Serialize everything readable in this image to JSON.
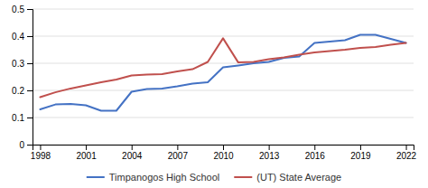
{
  "chart_data": {
    "type": "line",
    "x": [
      1998,
      1999,
      2000,
      2001,
      2002,
      2003,
      2004,
      2005,
      2006,
      2007,
      2008,
      2009,
      2010,
      2011,
      2012,
      2013,
      2014,
      2015,
      2016,
      2017,
      2018,
      2019,
      2020,
      2021,
      2022
    ],
    "series": [
      {
        "name": "Timpanogos High School",
        "color": "#4472C4",
        "values": [
          0.13,
          0.148,
          0.15,
          0.145,
          0.125,
          0.125,
          0.195,
          0.205,
          0.207,
          0.215,
          0.225,
          0.23,
          0.285,
          0.292,
          0.3,
          0.305,
          0.32,
          0.325,
          0.375,
          0.38,
          0.385,
          0.405,
          0.405,
          0.39,
          0.375
        ]
      },
      {
        "name": "(UT) State Average",
        "color": "#C0504D",
        "values": [
          0.175,
          0.193,
          0.207,
          0.218,
          0.23,
          0.24,
          0.255,
          0.258,
          0.26,
          0.27,
          0.278,
          0.305,
          0.392,
          0.303,
          0.305,
          0.315,
          0.322,
          0.332,
          0.34,
          0.345,
          0.35,
          0.357,
          0.36,
          0.368,
          0.375
        ]
      }
    ],
    "xlim": [
      1997.5,
      2022.5
    ],
    "xticks": [
      1998,
      2001,
      2004,
      2007,
      2010,
      2013,
      2016,
      2019,
      2022
    ],
    "ylim": [
      0,
      0.5
    ],
    "yticks": [
      0,
      0.1,
      0.2,
      0.3,
      0.4,
      0.5
    ],
    "grid": true,
    "legend": "bottom"
  }
}
